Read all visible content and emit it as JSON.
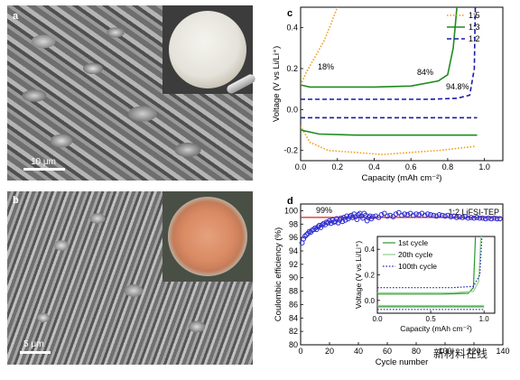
{
  "panel_a": {
    "label": "a",
    "scale_bar": "10 μm"
  },
  "panel_b": {
    "label": "b",
    "scale_bar": "5 μm"
  },
  "watermark": "新材料在线",
  "chart_data": [
    {
      "label": "c",
      "type": "line",
      "xlabel": "Capacity (mAh cm⁻²)",
      "ylabel": "Voltage (V vs Li/Li⁺)",
      "xlim": [
        0,
        1.1
      ],
      "ylim": [
        -0.25,
        0.5
      ],
      "xticks": [
        "0.0",
        "0.2",
        "0.4",
        "0.6",
        "0.8",
        "1.0"
      ],
      "yticks": [
        "-0.2",
        "0.0",
        "0.2",
        "0.4"
      ],
      "legend": {
        "position": "top-right"
      },
      "annotations": [
        "18%",
        "84%",
        "94.8%"
      ],
      "series": [
        {
          "name": "1:5",
          "color": "#f0a020",
          "style": "dotted",
          "charge": [
            [
              0.0,
              0.12
            ],
            [
              0.03,
              0.18
            ],
            [
              0.08,
              0.26
            ],
            [
              0.13,
              0.34
            ],
            [
              0.17,
              0.43
            ],
            [
              0.2,
              0.5
            ]
          ],
          "discharge": [
            [
              0.0,
              -0.08
            ],
            [
              0.05,
              -0.16
            ],
            [
              0.15,
              -0.2
            ],
            [
              0.3,
              -0.21
            ],
            [
              0.45,
              -0.22
            ],
            [
              0.6,
              -0.21
            ],
            [
              0.75,
              -0.2
            ],
            [
              0.85,
              -0.19
            ],
            [
              0.95,
              -0.18
            ]
          ]
        },
        {
          "name": "1:3",
          "color": "#1e8c1e",
          "style": "solid",
          "charge": [
            [
              0.0,
              0.12
            ],
            [
              0.05,
              0.11
            ],
            [
              0.2,
              0.11
            ],
            [
              0.4,
              0.11
            ],
            [
              0.6,
              0.115
            ],
            [
              0.75,
              0.14
            ],
            [
              0.8,
              0.17
            ],
            [
              0.83,
              0.3
            ],
            [
              0.84,
              0.4
            ],
            [
              0.85,
              0.5
            ]
          ],
          "discharge": [
            [
              0.0,
              -0.1
            ],
            [
              0.1,
              -0.12
            ],
            [
              0.3,
              -0.125
            ],
            [
              0.5,
              -0.125
            ],
            [
              0.7,
              -0.125
            ],
            [
              0.9,
              -0.125
            ],
            [
              0.96,
              -0.125
            ]
          ]
        },
        {
          "name": "1:2",
          "color": "#1a1aa8",
          "style": "dashed",
          "charge": [
            [
              0.0,
              0.05
            ],
            [
              0.1,
              0.05
            ],
            [
              0.3,
              0.05
            ],
            [
              0.5,
              0.05
            ],
            [
              0.7,
              0.05
            ],
            [
              0.85,
              0.055
            ],
            [
              0.92,
              0.07
            ],
            [
              0.945,
              0.2
            ],
            [
              0.95,
              0.5
            ]
          ],
          "discharge": [
            [
              0.0,
              -0.04
            ],
            [
              0.2,
              -0.04
            ],
            [
              0.5,
              -0.04
            ],
            [
              0.8,
              -0.04
            ],
            [
              0.96,
              -0.04
            ]
          ]
        }
      ]
    },
    {
      "label": "d",
      "type": "scatter",
      "title": "1:2 LiFSI-TEP",
      "xlabel": "Cycle number",
      "ylabel": "Coulombic efficiency (%)",
      "xlim": [
        0,
        140
      ],
      "ylim": [
        80,
        101
      ],
      "xticks": [
        "0",
        "20",
        "40",
        "60",
        "80",
        "100",
        "120",
        "140"
      ],
      "yticks": [
        "80",
        "82",
        "84",
        "86",
        "88",
        "90",
        "92",
        "94",
        "96",
        "98",
        "100"
      ],
      "reference_line": {
        "value": 99,
        "label": "99%",
        "color": "#e02020"
      },
      "series": [
        {
          "name": "CE",
          "color": "#2a2ad0",
          "points": [
            [
              1,
              95.2
            ],
            [
              2,
              95.8
            ],
            [
              3,
              96.2
            ],
            [
              4,
              96.4
            ],
            [
              5,
              96.6
            ],
            [
              6,
              96.9
            ],
            [
              7,
              96.8
            ],
            [
              8,
              97.1
            ],
            [
              9,
              97.2
            ],
            [
              10,
              97.4
            ],
            [
              11,
              97.2
            ],
            [
              12,
              97.6
            ],
            [
              13,
              97.8
            ],
            [
              14,
              97.5
            ],
            [
              15,
              97.9
            ],
            [
              16,
              98.1
            ],
            [
              17,
              97.9
            ],
            [
              18,
              98.3
            ],
            [
              19,
              98.2
            ],
            [
              20,
              98.5
            ],
            [
              21,
              98.1
            ],
            [
              22,
              98.6
            ],
            [
              23,
              98.3
            ],
            [
              24,
              98.4
            ],
            [
              25,
              98.8
            ],
            [
              26,
              98.2
            ],
            [
              27,
              98.6
            ],
            [
              28,
              98.9
            ],
            [
              29,
              98.4
            ],
            [
              30,
              99.0
            ],
            [
              31,
              98.6
            ],
            [
              32,
              99.2
            ],
            [
              33,
              98.8
            ],
            [
              34,
              99.1
            ],
            [
              35,
              99.3
            ],
            [
              36,
              99.0
            ],
            [
              37,
              99.5
            ],
            [
              38,
              99.1
            ],
            [
              39,
              98.7
            ],
            [
              40,
              99.4
            ],
            [
              41,
              99.6
            ],
            [
              42,
              99.2
            ],
            [
              43,
              98.9
            ],
            [
              44,
              99.6
            ],
            [
              45,
              99.3
            ],
            [
              46,
              98.5
            ],
            [
              47,
              99.0
            ],
            [
              48,
              99.2
            ],
            [
              49,
              98.8
            ],
            [
              50,
              99.1
            ],
            [
              52,
              99.2
            ],
            [
              54,
              99.0
            ],
            [
              56,
              99.4
            ],
            [
              58,
              99.6
            ],
            [
              60,
              99.2
            ],
            [
              62,
              99.3
            ],
            [
              64,
              99.1
            ],
            [
              66,
              99.5
            ],
            [
              68,
              99.7
            ],
            [
              70,
              99.3
            ],
            [
              72,
              99.5
            ],
            [
              74,
              99.4
            ],
            [
              76,
              99.6
            ],
            [
              78,
              99.3
            ],
            [
              80,
              99.5
            ],
            [
              82,
              99.4
            ],
            [
              84,
              99.6
            ],
            [
              86,
              99.3
            ],
            [
              88,
              99.5
            ],
            [
              90,
              99.4
            ],
            [
              92,
              99.3
            ],
            [
              94,
              99.2
            ],
            [
              96,
              99.4
            ],
            [
              98,
              99.3
            ],
            [
              100,
              99.2
            ],
            [
              102,
              99.3
            ],
            [
              104,
              99.1
            ],
            [
              106,
              99.2
            ],
            [
              108,
              99.0
            ],
            [
              110,
              99.1
            ],
            [
              112,
              99.0
            ],
            [
              114,
              99.1
            ],
            [
              116,
              98.9
            ],
            [
              118,
              99.0
            ],
            [
              120,
              98.9
            ],
            [
              122,
              99.0
            ],
            [
              124,
              98.9
            ],
            [
              126,
              98.9
            ],
            [
              128,
              98.8
            ],
            [
              130,
              98.9
            ],
            [
              132,
              98.8
            ],
            [
              134,
              98.9
            ],
            [
              136,
              98.8
            ],
            [
              138,
              98.8
            ]
          ]
        }
      ],
      "inset": {
        "type": "line",
        "xlabel": "Capacity (mAh cm⁻²)",
        "ylabel": "Voltage (V vs Li/Li⁺)",
        "xlim": [
          0,
          1.1
        ],
        "ylim": [
          -0.1,
          0.5
        ],
        "xticks": [
          "0.0",
          "0.5",
          "1.0"
        ],
        "yticks": [
          "0.0",
          "0.2",
          "0.4"
        ],
        "series": [
          {
            "name": "1st cycle",
            "color": "#2a9a2a",
            "style": "solid",
            "charge": [
              [
                0.0,
                0.05
              ],
              [
                0.3,
                0.05
              ],
              [
                0.6,
                0.05
              ],
              [
                0.85,
                0.055
              ],
              [
                0.9,
                0.1
              ],
              [
                0.92,
                0.5
              ]
            ],
            "discharge": [
              [
                0.0,
                -0.05
              ],
              [
                0.4,
                -0.05
              ],
              [
                0.8,
                -0.05
              ],
              [
                1.0,
                -0.05
              ]
            ]
          },
          {
            "name": "20th cycle",
            "color": "#90d090",
            "style": "solid",
            "charge": [
              [
                0.0,
                0.06
              ],
              [
                0.3,
                0.06
              ],
              [
                0.7,
                0.06
              ],
              [
                0.9,
                0.07
              ],
              [
                0.95,
                0.15
              ],
              [
                0.97,
                0.5
              ]
            ],
            "discharge": [
              [
                0.0,
                -0.04
              ],
              [
                0.5,
                -0.04
              ],
              [
                1.0,
                -0.04
              ]
            ]
          },
          {
            "name": "100th cycle",
            "color": "#2424b0",
            "style": "dotted",
            "charge": [
              [
                0.0,
                0.1
              ],
              [
                0.3,
                0.1
              ],
              [
                0.7,
                0.1
              ],
              [
                0.9,
                0.11
              ],
              [
                0.96,
                0.2
              ],
              [
                0.98,
                0.5
              ]
            ],
            "discharge": [
              [
                0.0,
                -0.07
              ],
              [
                0.5,
                -0.07
              ],
              [
                1.0,
                -0.07
              ]
            ]
          }
        ]
      }
    }
  ]
}
